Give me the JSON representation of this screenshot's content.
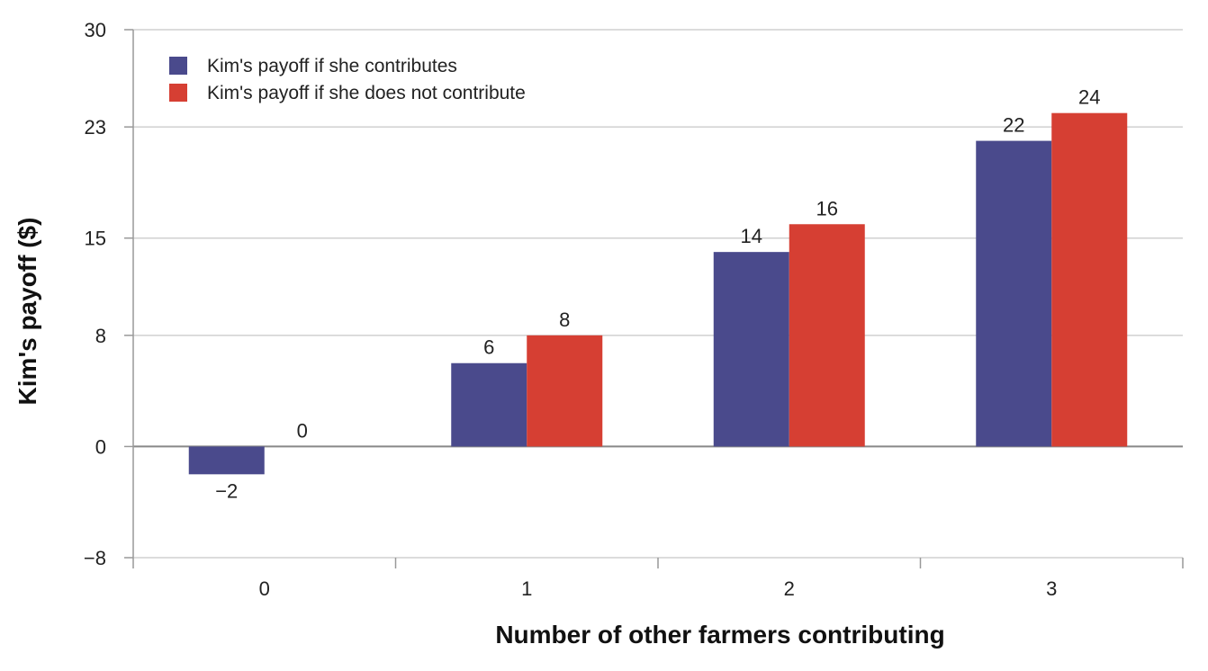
{
  "chart_data": {
    "type": "bar",
    "title": "",
    "xlabel": "Number of other farmers contributing",
    "ylabel": "Kim's payoff ($)",
    "categories": [
      "0",
      "1",
      "2",
      "3"
    ],
    "yticks": [
      -8,
      0,
      8,
      15,
      23,
      30
    ],
    "ytick_labels": [
      "−8",
      "0",
      "8",
      "15",
      "23",
      "30"
    ],
    "ylim": [
      -8,
      30
    ],
    "grid": true,
    "legend_position": "top-left",
    "series": [
      {
        "name": "Kim's payoff if she contributes",
        "color": "#4a4a8c",
        "values": [
          -2,
          6,
          14,
          22
        ],
        "labels": [
          "−2",
          "6",
          "14",
          "22"
        ]
      },
      {
        "name": "Kim's payoff if she does not contribute",
        "color": "#d63f33",
        "values": [
          0,
          8,
          16,
          24
        ],
        "labels": [
          "0",
          "8",
          "16",
          "24"
        ]
      }
    ]
  }
}
